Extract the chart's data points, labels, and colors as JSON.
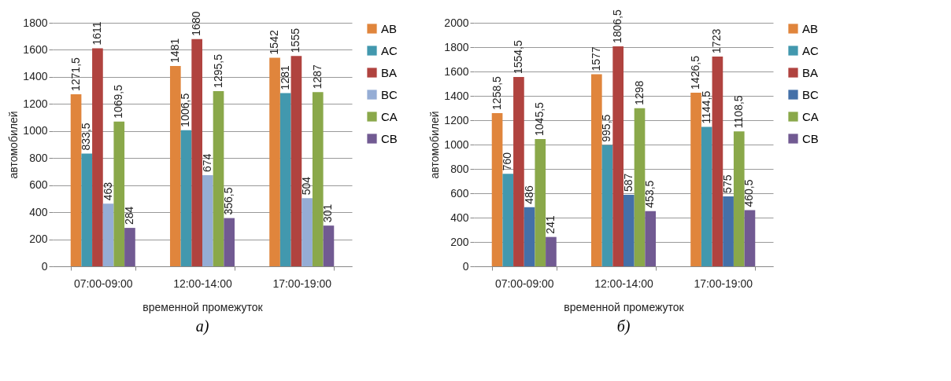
{
  "chart_data": [
    {
      "type": "bar",
      "xlabel": "временной промежуток",
      "ylabel": "автомобилей",
      "categories": [
        "07:00-09:00",
        "12:00-14:00",
        "17:00-19:00"
      ],
      "ylim": [
        0,
        1800
      ],
      "yticks": [
        0,
        200,
        400,
        600,
        800,
        1000,
        1200,
        1400,
        1600,
        1800
      ],
      "grid": "y",
      "legend": "right",
      "annotations": [
        "а)"
      ],
      "series": [
        {
          "name": "AB",
          "color": "#e0853c",
          "values": [
            1271.5,
            1481,
            1542
          ],
          "value_labels": [
            "1271,5",
            "1481",
            "1542"
          ]
        },
        {
          "name": "AC",
          "color": "#4298ae",
          "values": [
            833.5,
            1006.5,
            1281
          ],
          "value_labels": [
            "833,5",
            "1006,5",
            "1281"
          ]
        },
        {
          "name": "BA",
          "color": "#b0433f",
          "values": [
            1611,
            1680,
            1555
          ],
          "value_labels": [
            "1611",
            "1680",
            "1555"
          ]
        },
        {
          "name": "BC",
          "color": "#95add5",
          "values": [
            463,
            674,
            504
          ],
          "value_labels": [
            "463",
            "674",
            "504"
          ]
        },
        {
          "name": "CA",
          "color": "#8aa84a",
          "values": [
            1069.5,
            1295.5,
            1287
          ],
          "value_labels": [
            "1069,5",
            "1295,5",
            "1287"
          ]
        },
        {
          "name": "CB",
          "color": "#715a92",
          "values": [
            284,
            356.5,
            301
          ],
          "value_labels": [
            "284",
            "356,5",
            "301"
          ]
        }
      ]
    },
    {
      "type": "bar",
      "xlabel": "временной   промежуток",
      "ylabel": "автомобилей",
      "categories": [
        "07:00-09:00",
        "12:00-14:00",
        "17:00-19:00"
      ],
      "ylim": [
        0,
        2000
      ],
      "yticks": [
        0,
        200,
        400,
        600,
        800,
        1000,
        1200,
        1400,
        1600,
        1800,
        2000
      ],
      "grid": "y",
      "legend": "right",
      "annotations": [
        "б)"
      ],
      "series": [
        {
          "name": "AB",
          "color": "#e0853c",
          "values": [
            1258.5,
            1577,
            1426.5
          ],
          "value_labels": [
            "1258,5",
            "1577",
            "1426,5"
          ]
        },
        {
          "name": "AC",
          "color": "#4298ae",
          "values": [
            760,
            995.5,
            1144.5
          ],
          "value_labels": [
            "760",
            "995,5",
            "1144,5"
          ]
        },
        {
          "name": "BA",
          "color": "#b0433f",
          "values": [
            1554.5,
            1806.5,
            1723
          ],
          "value_labels": [
            "1554,5",
            "1806,5",
            "1723"
          ]
        },
        {
          "name": "BC",
          "color": "#4470a8",
          "values": [
            486,
            587,
            575
          ],
          "value_labels": [
            "486",
            "587",
            "575"
          ]
        },
        {
          "name": "CA",
          "color": "#8aa84a",
          "values": [
            1045.5,
            1298,
            1108.5
          ],
          "value_labels": [
            "1045,5",
            "1298",
            "1108,5"
          ]
        },
        {
          "name": "CB",
          "color": "#715a92",
          "values": [
            241,
            453.5,
            460.5
          ],
          "value_labels": [
            "241",
            "453,5",
            "460,5"
          ]
        }
      ]
    }
  ]
}
